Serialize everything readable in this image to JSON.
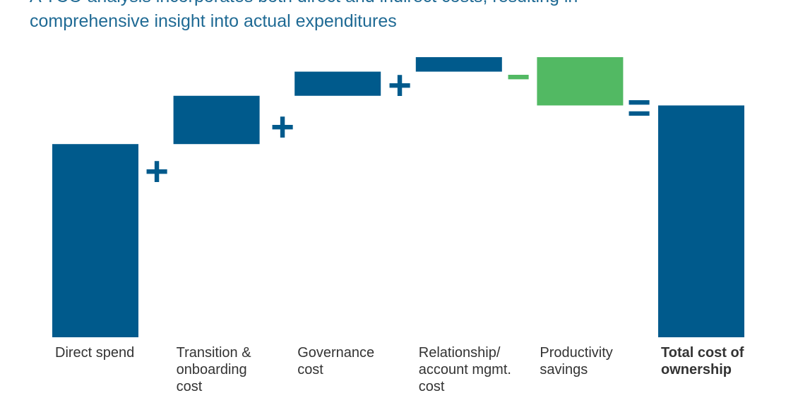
{
  "chart_data": {
    "type": "waterfall",
    "title": [
      "A TCO analysis incorporates both direct and indirect costs, resulting in",
      "comprehensive insight into actual expenditures"
    ],
    "categories": [
      [
        "Direct spend"
      ],
      [
        "Transition &",
        "onboarding",
        "cost"
      ],
      [
        "Governance",
        "cost"
      ],
      [
        "Relationship/",
        "account mgmt.",
        "cost"
      ],
      [
        "Productivity",
        "savings"
      ],
      [
        "Total cost of",
        "ownership"
      ]
    ],
    "values": [
      100,
      25,
      12.5,
      7.5,
      -25,
      120
    ],
    "is_total": [
      false,
      false,
      false,
      false,
      false,
      true
    ],
    "colors": [
      "#005a8c",
      "#005a8c",
      "#005a8c",
      "#005a8c",
      "#52b963",
      "#005a8c"
    ],
    "operators": [
      "+",
      "+",
      "+",
      "−",
      "="
    ],
    "operator_colors": [
      "#005a8c",
      "#005a8c",
      "#005a8c",
      "#52b963",
      "#005a8c"
    ],
    "ylim": [
      0,
      145
    ]
  }
}
